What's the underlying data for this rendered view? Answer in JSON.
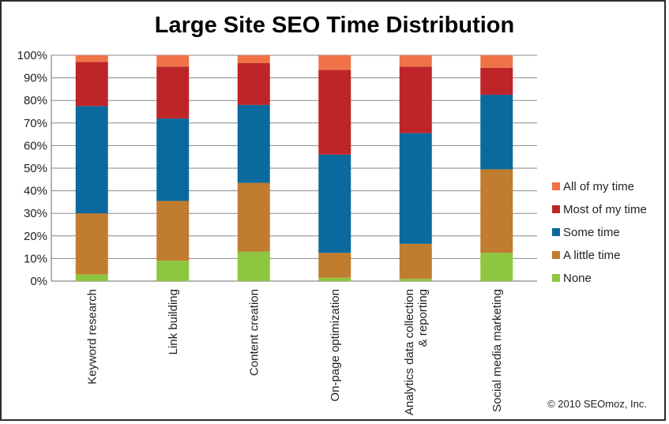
{
  "chart_data": {
    "type": "bar",
    "stacked": true,
    "title": "Large Site SEO Time Distribution",
    "categories": [
      "Keyword research",
      "Link building",
      "Content creation",
      "On-page optimization",
      "Analytics data collection & reporting",
      "Social media marketing"
    ],
    "category_lines": [
      [
        "Keyword research"
      ],
      [
        "Link building"
      ],
      [
        "Content creation"
      ],
      [
        "On-page optimization"
      ],
      [
        "Analytics data collection",
        "& reporting"
      ],
      [
        "Social media marketing"
      ]
    ],
    "series": [
      {
        "name": "None",
        "color": "#8DC63F",
        "values": [
          3,
          9,
          13,
          1.5,
          1,
          12.5
        ]
      },
      {
        "name": "A little time",
        "color": "#C07C2F",
        "values": [
          27,
          26.5,
          30.5,
          11,
          15.5,
          37
        ]
      },
      {
        "name": "Some time",
        "color": "#0A6A9E",
        "values": [
          47.5,
          36.5,
          34.5,
          43.5,
          49,
          33
        ]
      },
      {
        "name": "Most of my time",
        "color": "#BE2528",
        "values": [
          19.5,
          23,
          18.5,
          37.5,
          29.5,
          12
        ]
      },
      {
        "name": "All of my time",
        "color": "#EF7347",
        "values": [
          3,
          5,
          3.5,
          6.5,
          5,
          5.5
        ]
      }
    ],
    "ylim": [
      0,
      100
    ],
    "yticks": [
      "0%",
      "10%",
      "20%",
      "30%",
      "40%",
      "50%",
      "60%",
      "70%",
      "80%",
      "90%",
      "100%"
    ],
    "legend_order": [
      "All of my time",
      "Most of my time",
      "Some time",
      "A little time",
      "None"
    ],
    "legend_position": "right",
    "grid": true
  },
  "footer": {
    "copyright": "© 2010 SEOmoz,  Inc."
  }
}
